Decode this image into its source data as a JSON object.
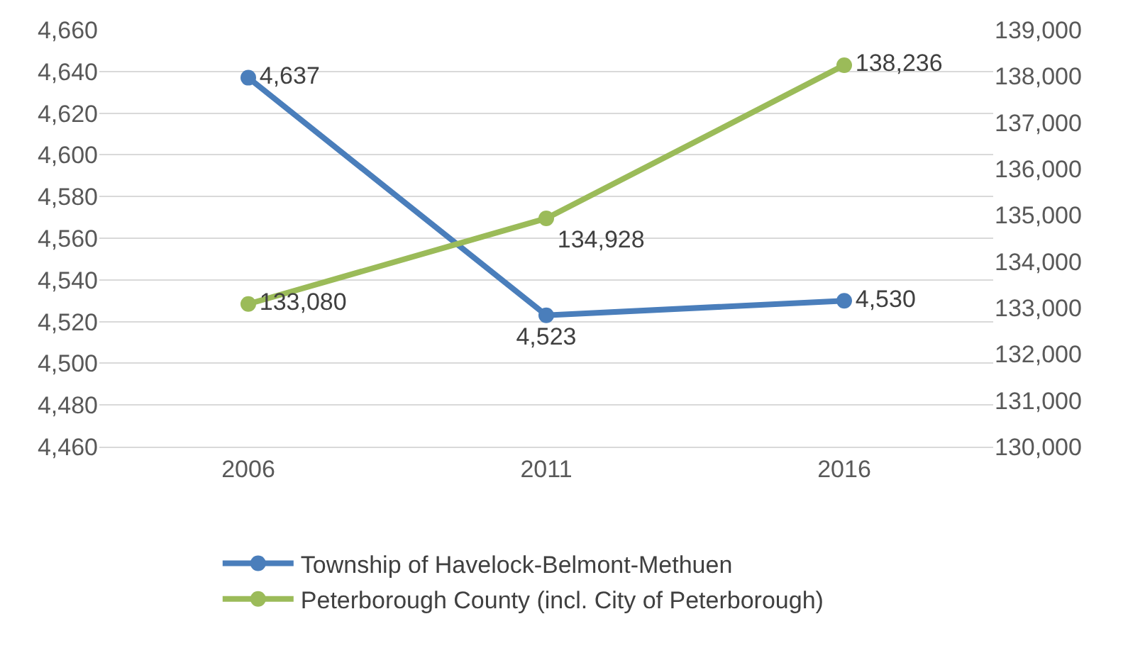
{
  "chart_data": {
    "type": "line",
    "categories": [
      "2006",
      "2011",
      "2016"
    ],
    "series": [
      {
        "name": "Township of Havelock-Belmont-Methuen",
        "color": "#4a7ebb",
        "values": [
          4637,
          4523,
          4530
        ],
        "value_labels": [
          "4,637",
          "4,523",
          "4,530"
        ]
      },
      {
        "name": "Peterborough County (incl. City of Peterborough)",
        "color": "#9bbb59",
        "values": [
          133080,
          134928,
          138236
        ],
        "value_labels": [
          "133,080",
          "134,928",
          "138,236"
        ],
        "axis": "y2"
      }
    ],
    "ylim": [
      4460,
      4660
    ],
    "yticks": [
      {
        "value": 4460,
        "label": "4,460"
      },
      {
        "value": 4480,
        "label": "4,480"
      },
      {
        "value": 4500,
        "label": "4,500"
      },
      {
        "value": 4520,
        "label": "4,520"
      },
      {
        "value": 4540,
        "label": "4,540"
      },
      {
        "value": 4560,
        "label": "4,560"
      },
      {
        "value": 4580,
        "label": "4,580"
      },
      {
        "value": 4600,
        "label": "4,600"
      },
      {
        "value": 4620,
        "label": "4,620"
      },
      {
        "value": 4640,
        "label": "4,640"
      },
      {
        "value": 4660,
        "label": "4,660"
      }
    ],
    "y2lim": [
      130000,
      139000
    ],
    "y2ticks": [
      {
        "value": 130000,
        "label": "130,000"
      },
      {
        "value": 131000,
        "label": "131,000"
      },
      {
        "value": 132000,
        "label": "132,000"
      },
      {
        "value": 133000,
        "label": "133,000"
      },
      {
        "value": 134000,
        "label": "134,000"
      },
      {
        "value": 135000,
        "label": "135,000"
      },
      {
        "value": 136000,
        "label": "136,000"
      },
      {
        "value": 137000,
        "label": "137,000"
      },
      {
        "value": 138000,
        "label": "138,000"
      },
      {
        "value": 139000,
        "label": "139,000"
      }
    ],
    "grid": "y",
    "legend": "bottom",
    "marker": "circle",
    "line_style": "solid"
  }
}
